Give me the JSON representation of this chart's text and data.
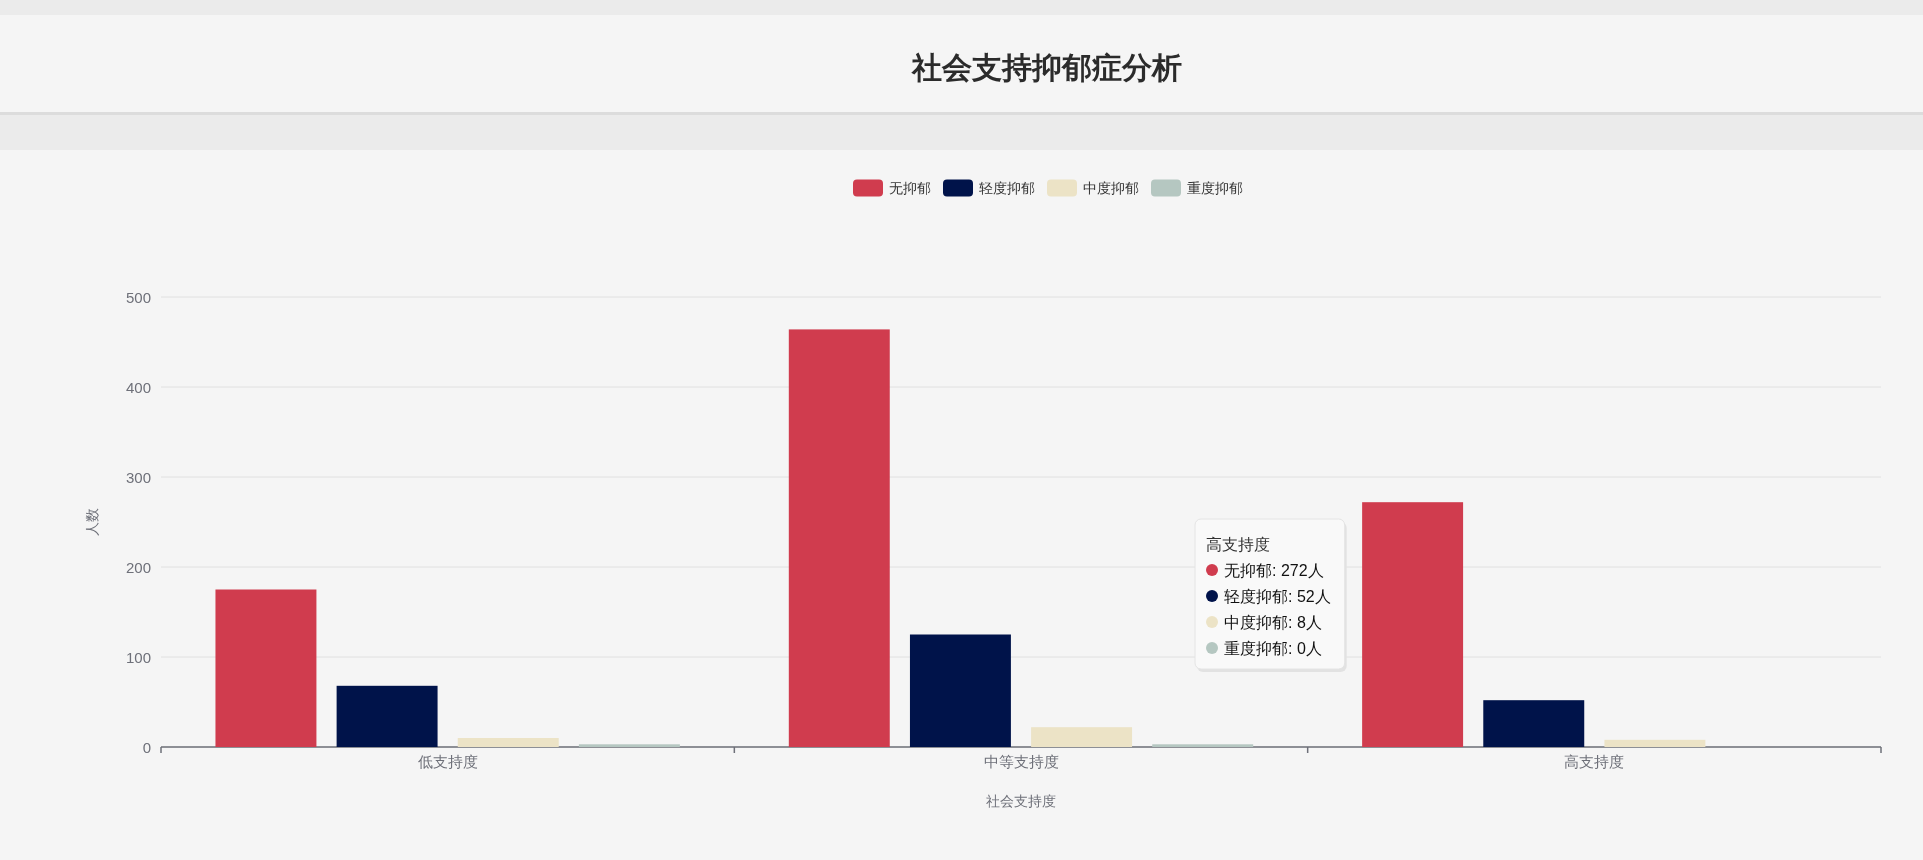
{
  "chart_data": {
    "type": "bar",
    "title": "社会支持抑郁症分析",
    "xlabel": "社会支持度",
    "ylabel": "人数",
    "categories": [
      "低支持度",
      "中等支持度",
      "高支持度"
    ],
    "series": [
      {
        "name": "无抑郁",
        "color": "#d03c4e",
        "values": [
          175,
          464,
          272
        ]
      },
      {
        "name": "轻度抑郁",
        "color": "#00134a",
        "values": [
          68,
          125,
          52
        ]
      },
      {
        "name": "中度抑郁",
        "color": "#ece3c6",
        "values": [
          10,
          22,
          8
        ]
      },
      {
        "name": "重度抑郁",
        "color": "#b5c7c1",
        "values": [
          3,
          3,
          0
        ]
      }
    ],
    "ylim": [
      0,
      500
    ],
    "yticks": [
      0,
      100,
      200,
      300,
      400,
      500
    ],
    "grid": "y",
    "legend": "top",
    "annotations": [
      "高支持度",
      "无抑郁: 272人",
      "轻度抑郁: 52人",
      "中度抑郁: 8人",
      "重度抑郁: 0人"
    ]
  }
}
